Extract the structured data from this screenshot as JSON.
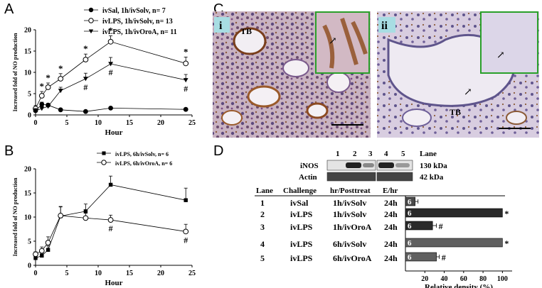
{
  "panel_letters": {
    "a": "A",
    "b": "B",
    "c": "C",
    "d": "D"
  },
  "chart_data": [
    {
      "type": "line",
      "panel": "A",
      "xlabel": "Hour",
      "ylabel": "Increased fold of NO production",
      "xlim": [
        0,
        25
      ],
      "ylim": [
        0,
        20
      ],
      "xticks": [
        "0",
        "5",
        "10",
        "15",
        "20",
        "25"
      ],
      "yticks": [
        "0",
        "5",
        "10",
        "15",
        "20"
      ],
      "legend_position": "top-right",
      "series": [
        {
          "name": "ivSal, 1h/ivSolv, n= 7",
          "marker": "filled-circle",
          "x": [
            0,
            1,
            2,
            4,
            8,
            12,
            24
          ],
          "y": [
            1.0,
            2.5,
            2.3,
            1.2,
            0.8,
            1.6,
            1.3
          ],
          "err": [
            0.6,
            0.5,
            0.4,
            0.3,
            0.3,
            0.3,
            0.3
          ],
          "stars": [],
          "hashes": []
        },
        {
          "name": "ivLPS, 1h/ivSolv, n= 13",
          "marker": "open-circle",
          "x": [
            0,
            1,
            2,
            4,
            8,
            12,
            24
          ],
          "y": [
            1.5,
            4.5,
            6.5,
            8.5,
            13,
            17.2,
            12.1
          ],
          "err": [
            0.7,
            1.0,
            1.0,
            1.2,
            1.3,
            1.4,
            1.5
          ],
          "stars": [
            1,
            2,
            4,
            8,
            12,
            24
          ],
          "hashes": []
        },
        {
          "name": "ivLPS, 1h/ivOroA, n= 11",
          "marker": "filled-triangle",
          "x": [
            0,
            1,
            2,
            4,
            8,
            12,
            24
          ],
          "y": [
            1.0,
            1.5,
            2.0,
            5.7,
            8.5,
            12.0,
            8.2
          ],
          "err": [
            0.5,
            0.5,
            0.6,
            0.8,
            1.3,
            1.5,
            1.3
          ],
          "stars": [],
          "hashes": [
            8,
            12,
            24
          ]
        }
      ]
    },
    {
      "type": "line",
      "panel": "B",
      "xlabel": "Hour",
      "ylabel": "Increased fold of NO production",
      "xlim": [
        0,
        25
      ],
      "ylim": [
        0,
        20
      ],
      "xticks": [
        "0",
        "5",
        "10",
        "15",
        "20",
        "25"
      ],
      "yticks": [
        "0",
        "5",
        "10",
        "15",
        "20"
      ],
      "legend_position": "top-right",
      "series": [
        {
          "name": "ivLPS, 6h/ivSolv, n= 6",
          "marker": "filled-square",
          "x": [
            0,
            1,
            2,
            4,
            8,
            12,
            24
          ],
          "y": [
            1.5,
            2.0,
            3.2,
            10.2,
            11.2,
            16.7,
            13.5
          ],
          "err": [
            0.4,
            0.5,
            0.8,
            2.0,
            1.5,
            1.8,
            2.5
          ],
          "stars": [],
          "hashes": []
        },
        {
          "name": "ivLPS, 6h/ivOroA, n= 6",
          "marker": "open-circle",
          "x": [
            0,
            1,
            2,
            4,
            8,
            12,
            24
          ],
          "y": [
            2.3,
            3.0,
            4.7,
            10.3,
            9.8,
            9.4,
            7.0
          ],
          "err": [
            0.5,
            0.8,
            1.2,
            1.8,
            1.0,
            1.0,
            1.5
          ],
          "stars": [],
          "hashes": [
            12,
            24
          ]
        }
      ]
    },
    {
      "type": "bar",
      "orientation": "horizontal",
      "panel": "D",
      "xlabel": "Relative density (%)",
      "xlim": [
        0,
        110
      ],
      "xticks": [
        "20",
        "40",
        "60",
        "80",
        "100"
      ],
      "categories": [
        "1",
        "2",
        "3",
        "4",
        "5"
      ],
      "values": [
        10,
        100,
        28,
        100,
        32
      ],
      "err": [
        3,
        0,
        4,
        0,
        3
      ],
      "bar_labels": [
        "6",
        "6",
        "6",
        "6",
        "6"
      ],
      "bar_colors": [
        "#4a4a4a",
        "#2a2a2a",
        "#2a2a2a",
        "#606060",
        "#606060"
      ],
      "marks": [
        "",
        "*",
        "#",
        "*",
        "#"
      ]
    }
  ],
  "panelC": {
    "sub_i": "i",
    "sub_ii": "ii",
    "tb_label": "TB",
    "arrow": "↗"
  },
  "panelD": {
    "blot": {
      "lane_numbers_left": [
        "1",
        "2",
        "3"
      ],
      "lane_numbers_right": [
        "4",
        "5"
      ],
      "lane_header": "Lane",
      "rows": [
        {
          "label": "iNOS",
          "kda": "130 kDa"
        },
        {
          "label": "Actin",
          "kda": "42 kDa"
        }
      ]
    },
    "table_headers": [
      "Lane",
      "Challenge",
      "hr/Posttreat",
      "E/hr"
    ],
    "table_rows": [
      {
        "lane": "1",
        "challenge": "ivSal",
        "treat": "1h/ivSolv",
        "ehr": "24h"
      },
      {
        "lane": "2",
        "challenge": "ivLPS",
        "treat": "1h/ivSolv",
        "ehr": "24h"
      },
      {
        "lane": "3",
        "challenge": "ivLPS",
        "treat": "1h/ivOroA",
        "ehr": "24h"
      },
      {
        "lane": "4",
        "challenge": "ivLPS",
        "treat": "6h/ivSolv",
        "ehr": "24h"
      },
      {
        "lane": "5",
        "challenge": "ivLPS",
        "treat": "6h/ivOroA",
        "ehr": "24h"
      }
    ]
  }
}
